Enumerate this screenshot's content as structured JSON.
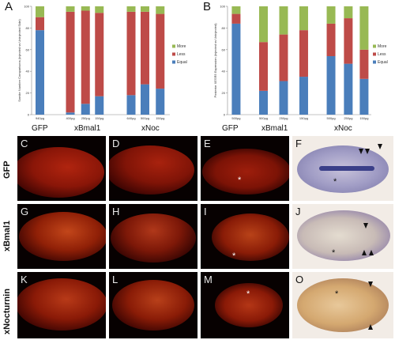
{
  "panels_top": {
    "a": "A",
    "b": "B"
  },
  "chart_data": [
    {
      "type": "bar",
      "stacked": true,
      "ylabel": "Somite Number Comparisons (Injected vs Uninjected Side)",
      "ylim": [
        0,
        100
      ],
      "yticks": [
        0,
        20,
        40,
        60,
        80,
        100
      ],
      "categories": [
        "940pg",
        "400pg",
        "250pg",
        "150pg",
        "640pg",
        "500pg",
        "150pg"
      ],
      "groups": [
        {
          "name": "GFP",
          "from": 0,
          "to": 0
        },
        {
          "name": "xBmal1",
          "from": 1,
          "to": 3
        },
        {
          "name": "xNoc",
          "from": 4,
          "to": 6
        }
      ],
      "series": [
        {
          "name": "Equal",
          "color": "#4a7ebb",
          "values": [
            78,
            2,
            10,
            17,
            18,
            28,
            24
          ]
        },
        {
          "name": "Less",
          "color": "#be4b48",
          "values": [
            12,
            93,
            86,
            77,
            77,
            67,
            69
          ]
        },
        {
          "name": "More",
          "color": "#98b954",
          "values": [
            10,
            5,
            4,
            6,
            5,
            5,
            7
          ]
        }
      ],
      "legend_position": "right"
    },
    {
      "type": "bar",
      "stacked": true,
      "ylabel": "Posterior XESR5 Expression (Injected vs Uninjected)",
      "ylim": [
        0,
        100
      ],
      "yticks": [
        0,
        20,
        40,
        60,
        80,
        100
      ],
      "categories": [
        "500pg",
        "500pg",
        "250pg",
        "150pg",
        "500pg",
        "250pg",
        "150pg"
      ],
      "groups": [
        {
          "name": "GFP",
          "from": 0,
          "to": 0
        },
        {
          "name": "xBmal1",
          "from": 1,
          "to": 3
        },
        {
          "name": "xNoc",
          "from": 4,
          "to": 6
        }
      ],
      "series": [
        {
          "name": "Equal",
          "color": "#4a7ebb",
          "values": [
            84,
            22,
            31,
            35,
            54,
            47,
            33
          ]
        },
        {
          "name": "Less",
          "color": "#be4b48",
          "values": [
            9,
            45,
            43,
            43,
            30,
            42,
            27
          ]
        },
        {
          "name": "More",
          "color": "#98b954",
          "values": [
            7,
            33,
            26,
            22,
            16,
            11,
            40
          ]
        }
      ],
      "legend_position": "right"
    }
  ],
  "rows": [
    {
      "label": "GFP",
      "panels": [
        "C",
        "D",
        "E",
        "F"
      ]
    },
    {
      "label": "xBmal1",
      "panels": [
        "G",
        "H",
        "I",
        "J"
      ]
    },
    {
      "label": "xNocturnin",
      "panels": [
        "K",
        "L",
        "M",
        "O"
      ]
    }
  ],
  "asterisk": "*"
}
